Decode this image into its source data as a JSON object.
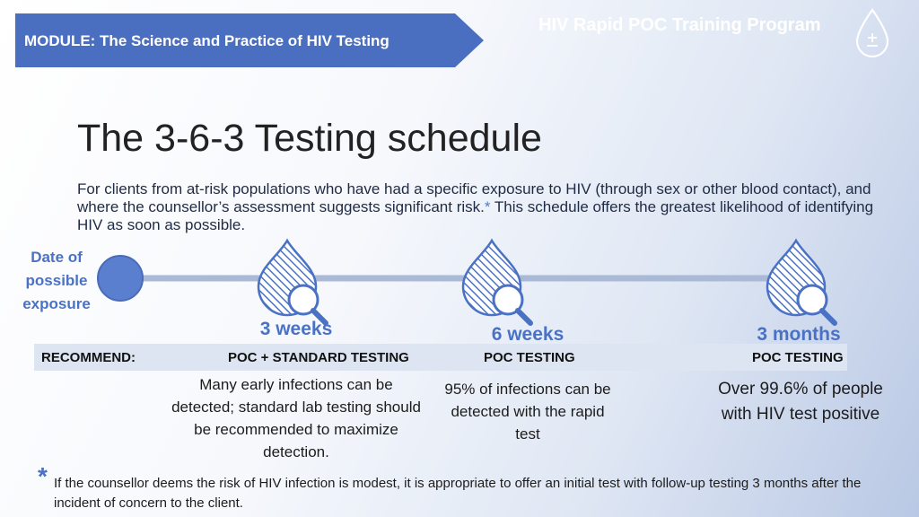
{
  "header": {
    "module_label": "MODULE: The Science and Practice of HIV Testing",
    "program_name": "HIV Rapid POC Training Program",
    "logo_icon": "droplet-plus-minus-icon"
  },
  "slide": {
    "title": "The 3-6-3 Testing schedule",
    "intro_text": "For clients from at-risk populations who have had a specific exposure to HIV (through sex or other blood contact), and where the counsellor’s assessment suggests significant risk.",
    "intro_star": "*",
    "intro_text_end": " This schedule offers the greatest likelihood of identifying HIV as soon as possible."
  },
  "timeline": {
    "start_label": "Date of possible exposure",
    "milestones": [
      {
        "time": "3 weeks",
        "test": "POC + STANDARD TESTING",
        "description": "Many early infections can be detected; standard lab testing should be recommended to maximize detection.",
        "icon": "blood-drop-magnifier-icon"
      },
      {
        "time": "6 weeks",
        "test": "POC TESTING",
        "description": "95% of infections can be detected with the rapid test",
        "icon": "blood-drop-magnifier-icon"
      },
      {
        "time": "3 months",
        "test": "POC TESTING",
        "description": "Over 99.6% of people with HIV test positive",
        "icon": "blood-drop-magnifier-icon"
      }
    ],
    "recommend_label": "RECOMMEND:"
  },
  "footnote": {
    "star": "*",
    "text": "If the counsellor deems the risk of HIV infection is modest, it is appropriate to offer an initial test with follow-up testing 3 months after the incident of concern to the client."
  },
  "colors": {
    "banner": "#4a6fc0",
    "accent": "#4a72c4",
    "band": "#dde5f2",
    "timeline_line": "#a9b9d6",
    "dot": "#5a7fcf"
  }
}
